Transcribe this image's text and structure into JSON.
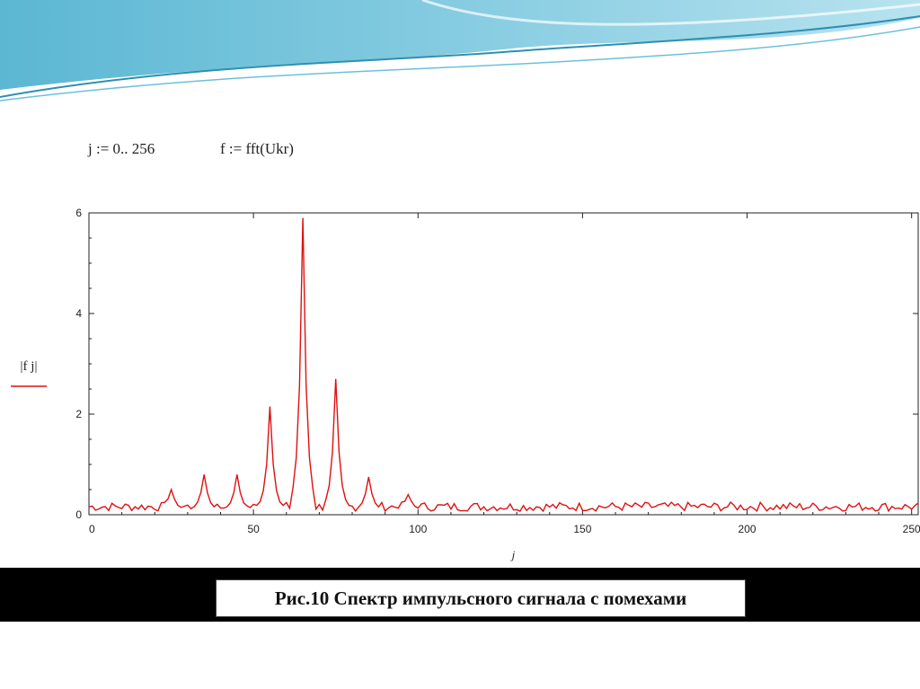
{
  "formulas": {
    "range_def": "j := 0.. 256",
    "fft_def": "f := fft(Ukr)"
  },
  "caption": "Рис.10  Спектр импульсного сигнала с помехами",
  "colors": {
    "series": "#e01010",
    "caption_bar": "#000000",
    "header_wave": "#3fa7c4"
  },
  "chart_data": {
    "type": "line",
    "xlabel": "j",
    "ylabel": "|f j|",
    "xlim": [
      0,
      252
    ],
    "ylim": [
      0,
      6
    ],
    "xticks": [
      0,
      50,
      100,
      150,
      200,
      250
    ],
    "xtick_labels": [
      "0",
      "50",
      "100",
      "150",
      "200",
      "250"
    ],
    "yticks": [
      0,
      2,
      4,
      6
    ],
    "ytick_labels": [
      "0",
      "2",
      "4",
      "6"
    ],
    "grid": false,
    "series": [
      {
        "peaks": [
          {
            "x": 25,
            "y": 0.5
          },
          {
            "x": 35,
            "y": 0.8
          },
          {
            "x": 45,
            "y": 0.8
          },
          {
            "x": 55,
            "y": 2.15
          },
          {
            "x": 65,
            "y": 5.9
          },
          {
            "x": 75,
            "y": 2.7
          },
          {
            "x": 85,
            "y": 0.75
          },
          {
            "x": 97,
            "y": 0.4
          }
        ],
        "baseline": 0.2
      }
    ]
  }
}
